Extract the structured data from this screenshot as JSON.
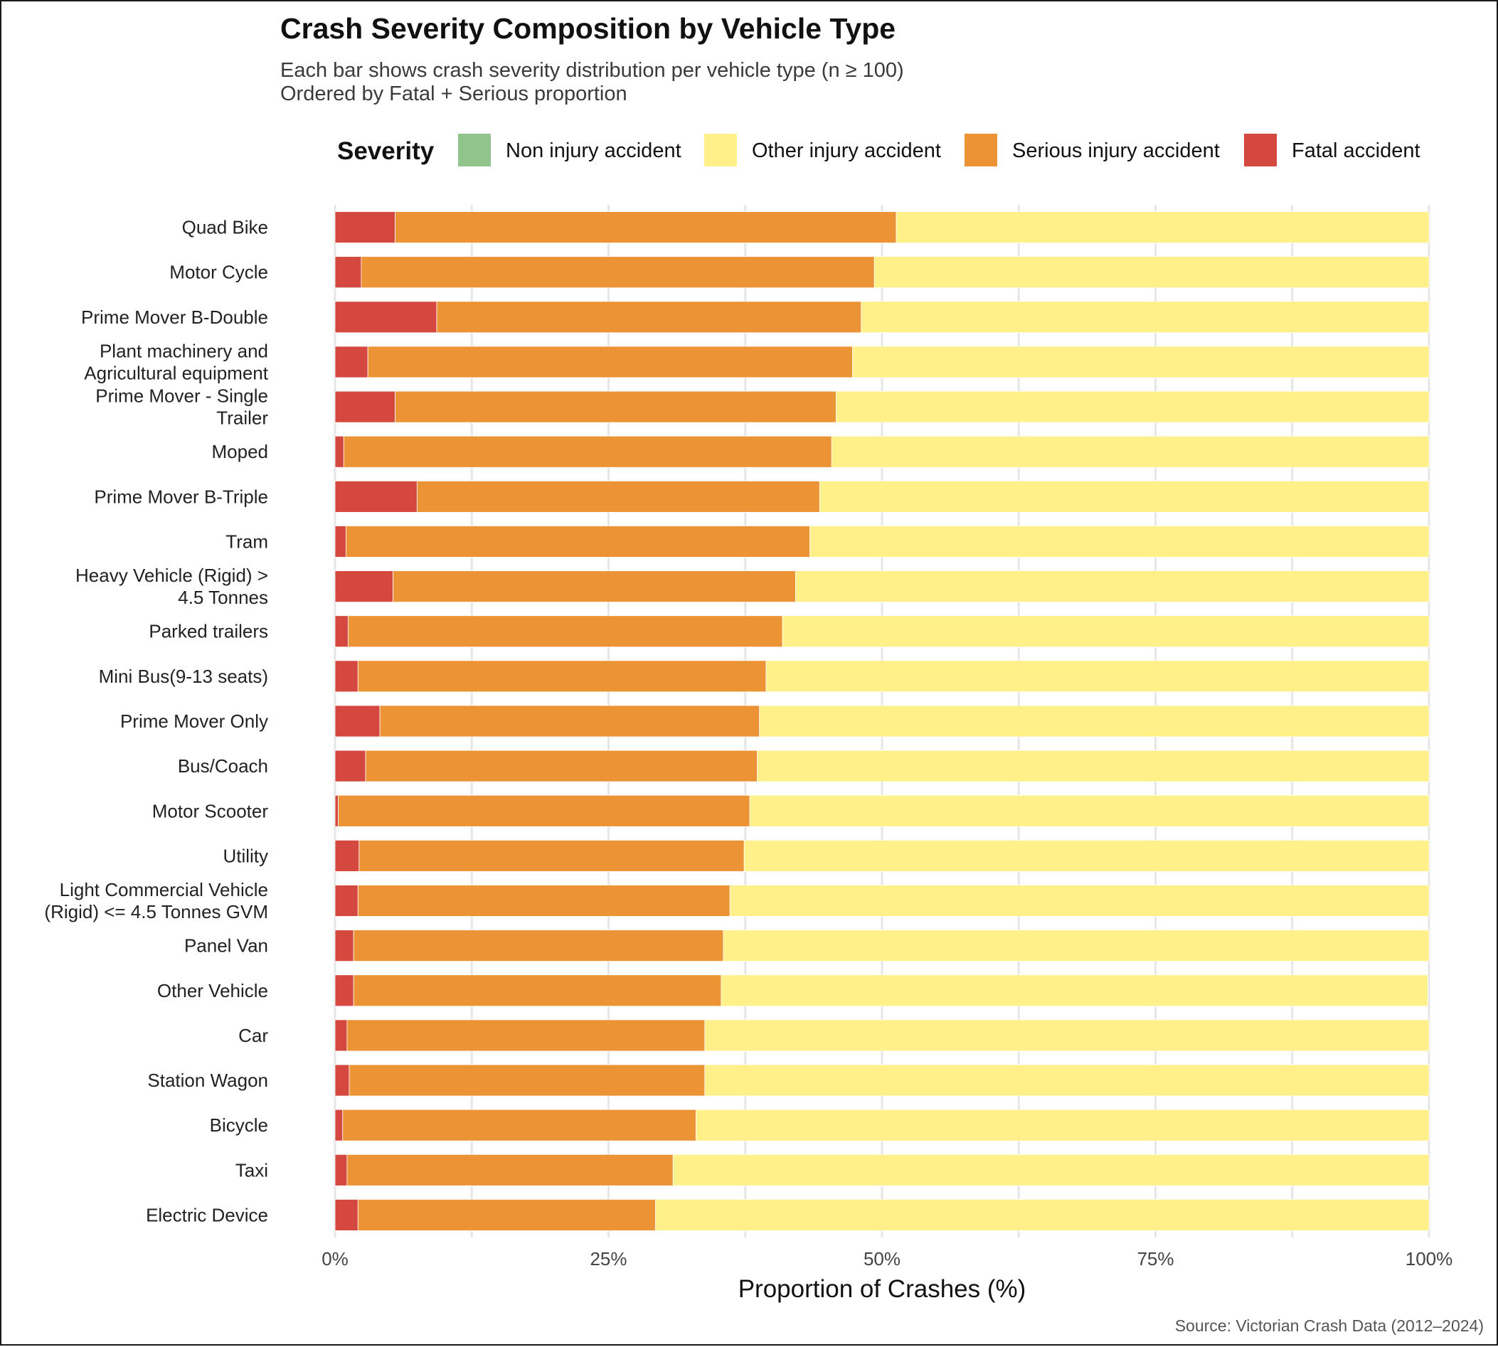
{
  "chart_data": {
    "type": "bar",
    "orientation": "horizontal",
    "stacked": true,
    "title": "Crash Severity Composition by Vehicle Type",
    "subtitle": [
      "Each bar shows crash severity distribution per vehicle type (n ≥ 100)",
      "Ordered by Fatal + Serious proportion"
    ],
    "xlabel": "Proportion of Crashes (%)",
    "ylabel": "",
    "xlim": [
      0,
      100
    ],
    "xticks": [
      0,
      25,
      50,
      75,
      100
    ],
    "xtick_labels": [
      "0%",
      "25%",
      "50%",
      "75%",
      "100%"
    ],
    "caption": "Source: Victorian Crash Data (2012–2024)",
    "grid": true,
    "legend": {
      "title": "Severity",
      "position": "top",
      "entries": [
        {
          "name": "Non injury accident",
          "color": "#91C48A"
        },
        {
          "name": "Other injury accident",
          "color": "#FFF08A"
        },
        {
          "name": "Serious injury accident",
          "color": "#EC9336"
        },
        {
          "name": "Fatal accident",
          "color": "#D44840"
        }
      ]
    },
    "categories": [
      [
        "Quad Bike"
      ],
      [
        "Motor Cycle"
      ],
      [
        "Prime Mover B-Double"
      ],
      [
        "Plant machinery and",
        "Agricultural equipment"
      ],
      [
        "Prime Mover - Single",
        "Trailer"
      ],
      [
        "Moped"
      ],
      [
        "Prime Mover B-Triple"
      ],
      [
        "Tram"
      ],
      [
        "Heavy Vehicle (Rigid) >",
        "4.5 Tonnes"
      ],
      [
        "Parked trailers"
      ],
      [
        "Mini Bus(9-13 seats)"
      ],
      [
        "Prime Mover Only"
      ],
      [
        "Bus/Coach"
      ],
      [
        "Motor Scooter"
      ],
      [
        "Utility"
      ],
      [
        "Light Commercial Vehicle",
        "(Rigid) <= 4.5 Tonnes GVM"
      ],
      [
        "Panel Van"
      ],
      [
        "Other Vehicle"
      ],
      [
        "Car"
      ],
      [
        "Station Wagon"
      ],
      [
        "Bicycle"
      ],
      [
        "Taxi"
      ],
      [
        "Electric Device"
      ]
    ],
    "series": [
      {
        "name": "Fatal accident",
        "color": "#D44840",
        "values": [
          5.5,
          2.4,
          9.3,
          3.0,
          5.5,
          0.8,
          7.5,
          1.0,
          5.3,
          1.2,
          2.1,
          4.1,
          2.8,
          0.3,
          2.2,
          2.1,
          1.7,
          1.7,
          1.1,
          1.3,
          0.7,
          1.1,
          2.1
        ]
      },
      {
        "name": "Serious injury accident",
        "color": "#EC9336",
        "values": [
          45.8,
          46.9,
          38.8,
          44.3,
          40.3,
          44.6,
          36.8,
          42.4,
          36.8,
          39.7,
          37.3,
          34.7,
          35.8,
          37.6,
          35.2,
          34.0,
          33.8,
          33.6,
          32.7,
          32.5,
          32.3,
          29.8,
          27.2
        ]
      },
      {
        "name": "Other injury accident",
        "color": "#FFF08A",
        "values": [
          48.7,
          50.7,
          51.9,
          52.7,
          54.2,
          54.6,
          55.7,
          56.6,
          57.9,
          59.1,
          60.6,
          61.2,
          61.4,
          62.1,
          62.6,
          63.9,
          64.5,
          64.6,
          66.2,
          66.2,
          67.0,
          69.1,
          70.7
        ]
      },
      {
        "name": "Non injury accident",
        "color": "#91C48A",
        "values": [
          0,
          0,
          0,
          0,
          0,
          0,
          0,
          0,
          0,
          0,
          0,
          0,
          0,
          0,
          0,
          0,
          0,
          0,
          0,
          0,
          0,
          0,
          0
        ]
      }
    ]
  }
}
